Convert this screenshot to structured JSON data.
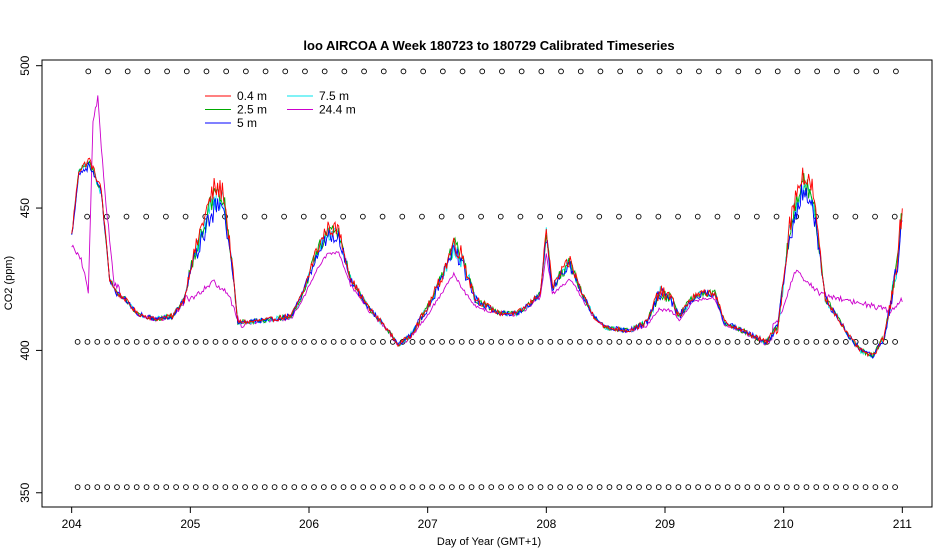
{
  "chart_data": {
    "type": "line",
    "title": "loo AIRCOA A  Week 180723 to 180729  Calibrated Timeseries",
    "xlabel": "Day of Year (GMT+1)",
    "ylabel": "CO2 (ppm)",
    "xlim": [
      203.75,
      211.25
    ],
    "ylim": [
      345,
      502
    ],
    "xticks": [
      204,
      205,
      206,
      207,
      208,
      209,
      210,
      211
    ],
    "yticks": [
      350,
      400,
      450,
      500
    ],
    "grid": false,
    "legend_position": "top-left",
    "series": [
      {
        "name": "0.4 m",
        "color": "#ff0000",
        "offset": 1.0
      },
      {
        "name": "2.5 m",
        "color": "#00aa00",
        "offset": 0.6
      },
      {
        "name": "5 m",
        "color": "#0000ff",
        "offset": 0.0
      },
      {
        "name": "7.5 m",
        "color": "#00e5ee",
        "offset": 0.4
      },
      {
        "name": "24.4 m",
        "color": "#cc00cc",
        "offset": 0.2
      }
    ],
    "profile": {
      "x": [
        204.0,
        204.06,
        204.15,
        204.25,
        204.32,
        204.38,
        204.45,
        204.55,
        204.7,
        204.85,
        204.95,
        205.0,
        205.1,
        205.2,
        205.28,
        205.35,
        205.4,
        205.5,
        205.7,
        205.85,
        205.95,
        206.05,
        206.15,
        206.25,
        206.35,
        206.5,
        206.65,
        206.75,
        206.85,
        207.0,
        207.12,
        207.22,
        207.3,
        207.4,
        207.6,
        207.75,
        207.85,
        207.95,
        208.0,
        208.05,
        208.12,
        208.2,
        208.3,
        208.4,
        208.5,
        208.7,
        208.85,
        208.95,
        209.05,
        209.12,
        209.22,
        209.32,
        209.42,
        209.5,
        209.6,
        209.75,
        209.85,
        209.95,
        210.05,
        210.15,
        210.25,
        210.35,
        210.45,
        210.55,
        210.65,
        210.75,
        210.85,
        210.95,
        211.0
      ],
      "y": [
        440,
        462,
        465,
        455,
        425,
        420,
        418,
        413,
        411,
        412,
        418,
        428,
        440,
        450,
        450,
        430,
        410,
        410,
        411,
        412,
        420,
        432,
        440,
        440,
        425,
        415,
        408,
        402,
        405,
        415,
        425,
        435,
        430,
        418,
        413,
        413,
        416,
        420,
        440,
        422,
        426,
        430,
        420,
        412,
        408,
        407,
        410,
        420,
        418,
        412,
        418,
        420,
        420,
        410,
        408,
        405,
        403,
        408,
        440,
        455,
        450,
        418,
        412,
        405,
        400,
        398,
        405,
        428,
        445
      ],
      "sensitivity": [
        0.3,
        0.4,
        0.6,
        0.5,
        0.2,
        0.1,
        0.1,
        0.05,
        0.05,
        0.1,
        0.3,
        1.0,
        2.5,
        2.8,
        2.5,
        1.0,
        0.1,
        0.1,
        0.1,
        0.2,
        0.5,
        1.2,
        1.6,
        1.4,
        0.5,
        0.2,
        0.1,
        0.05,
        0.2,
        0.6,
        1.2,
        2.0,
        2.2,
        0.6,
        0.1,
        0.1,
        0.2,
        0.3,
        1.5,
        0.5,
        1.0,
        1.2,
        0.4,
        0.1,
        0.05,
        0.05,
        0.3,
        1.4,
        1.0,
        0.4,
        0.4,
        0.4,
        0.4,
        0.2,
        0.1,
        0.1,
        0.2,
        0.8,
        2.4,
        2.8,
        2.6,
        0.6,
        0.2,
        0.1,
        0.1,
        0.1,
        0.5,
        2.4,
        2.4
      ],
      "series_24m_override": [
        {
          "x": 204.0,
          "y": 437
        },
        {
          "x": 204.08,
          "y": 432
        },
        {
          "x": 204.14,
          "y": 421
        },
        {
          "x": 204.18,
          "y": 480
        },
        {
          "x": 204.22,
          "y": 489
        },
        {
          "x": 204.28,
          "y": 455
        },
        {
          "x": 204.36,
          "y": 423
        },
        {
          "x": 205.0,
          "y": 418
        },
        {
          "x": 205.2,
          "y": 424
        },
        {
          "x": 205.32,
          "y": 420
        },
        {
          "x": 205.42,
          "y": 409
        },
        {
          "x": 209.95,
          "y": 410
        },
        {
          "x": 210.1,
          "y": 428
        },
        {
          "x": 210.3,
          "y": 420
        },
        {
          "x": 210.9,
          "y": 414
        },
        {
          "x": 211.0,
          "y": 418
        }
      ]
    },
    "marker_rows": [
      {
        "level": 498,
        "start": 204.14,
        "end": 211.0,
        "step": 0.166
      },
      {
        "level": 447,
        "start": 204.13,
        "end": 211.0,
        "step": 0.166
      },
      {
        "level": 403,
        "start": 204.05,
        "end": 211.0,
        "step": 0.083
      },
      {
        "level": 352,
        "start": 204.05,
        "end": 211.0,
        "step": 0.083
      }
    ]
  }
}
